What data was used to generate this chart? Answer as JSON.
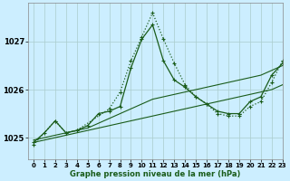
{
  "title": "Graphe pression niveau de la mer (hPa)",
  "bg_color": "#cceeff",
  "grid_color": "#aacccc",
  "line_color": "#1a5c1a",
  "xlim": [
    -0.5,
    23
  ],
  "ylim": [
    1024.55,
    1027.8
  ],
  "yticks": [
    1025,
    1026,
    1027
  ],
  "xticks": [
    0,
    1,
    2,
    3,
    4,
    5,
    6,
    7,
    8,
    9,
    10,
    11,
    12,
    13,
    14,
    15,
    16,
    17,
    18,
    19,
    20,
    21,
    22,
    23
  ],
  "series": [
    {
      "x": [
        0,
        1,
        2,
        3,
        4,
        5,
        6,
        7,
        8,
        9,
        10,
        11,
        12,
        13,
        14,
        15,
        16,
        17,
        18,
        19,
        20,
        21,
        22,
        23
      ],
      "y": [
        1024.9,
        1024.95,
        1025.0,
        1025.05,
        1025.1,
        1025.15,
        1025.2,
        1025.25,
        1025.3,
        1025.35,
        1025.4,
        1025.45,
        1025.5,
        1025.55,
        1025.6,
        1025.65,
        1025.7,
        1025.75,
        1025.8,
        1025.85,
        1025.9,
        1025.95,
        1026.0,
        1026.1
      ],
      "style": "solid",
      "marker": null,
      "lw": 0.8
    },
    {
      "x": [
        0,
        1,
        2,
        3,
        4,
        5,
        6,
        7,
        8,
        9,
        10,
        11,
        12,
        13,
        14,
        15,
        16,
        17,
        18,
        19,
        20,
        21,
        22,
        23
      ],
      "y": [
        1024.95,
        1025.0,
        1025.05,
        1025.1,
        1025.15,
        1025.2,
        1025.3,
        1025.4,
        1025.5,
        1025.6,
        1025.7,
        1025.8,
        1025.85,
        1025.9,
        1025.95,
        1026.0,
        1026.05,
        1026.1,
        1026.15,
        1026.2,
        1026.25,
        1026.3,
        1026.4,
        1026.5
      ],
      "style": "solid",
      "marker": null,
      "lw": 0.8
    },
    {
      "x": [
        0,
        1,
        2,
        3,
        4,
        5,
        6,
        7,
        8,
        9,
        10,
        11,
        12,
        13,
        14,
        15,
        16,
        17,
        18,
        19,
        20,
        21,
        22,
        23
      ],
      "y": [
        1024.9,
        1025.1,
        1025.35,
        1025.1,
        1025.15,
        1025.25,
        1025.5,
        1025.55,
        1025.65,
        1026.45,
        1027.05,
        1027.35,
        1026.6,
        1026.2,
        1026.05,
        1025.85,
        1025.7,
        1025.55,
        1025.5,
        1025.5,
        1025.75,
        1025.85,
        1026.3,
        1026.55
      ],
      "style": "solid",
      "marker": "+",
      "lw": 0.9
    },
    {
      "x": [
        0,
        2,
        3,
        4,
        7,
        8,
        9,
        10,
        11,
        12,
        13,
        14,
        15,
        16,
        17,
        18,
        19,
        20,
        21,
        22,
        23
      ],
      "y": [
        1024.85,
        1025.35,
        1025.1,
        1025.15,
        1025.6,
        1025.95,
        1026.6,
        1027.1,
        1027.6,
        1027.05,
        1026.55,
        1026.1,
        1025.85,
        1025.7,
        1025.5,
        1025.45,
        1025.45,
        1025.65,
        1025.75,
        1026.15,
        1026.6
      ],
      "style": "dotted",
      "marker": "+",
      "lw": 0.9
    }
  ]
}
